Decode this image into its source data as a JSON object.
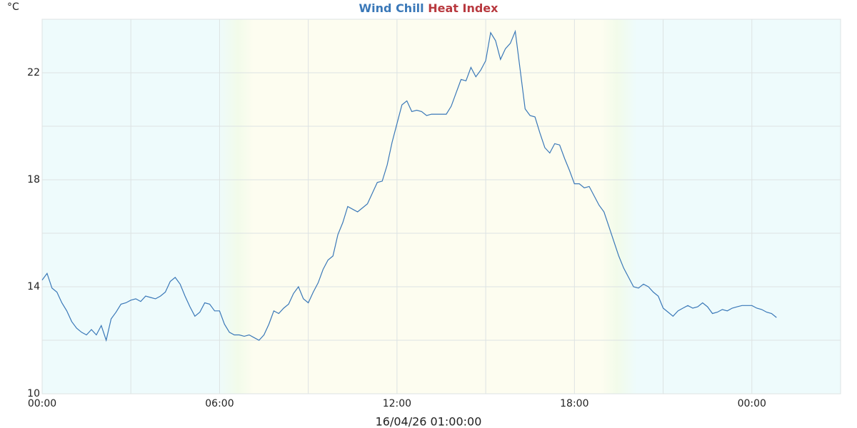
{
  "chart_data": {
    "type": "line",
    "unit_label": "°C",
    "xlabel": "16/04/26 01:00:00",
    "legend_only": [
      {
        "name": "Heat Index",
        "color": "#b8393f"
      }
    ],
    "series": [
      {
        "name": "Wind Chill",
        "color": "#3a78b8",
        "values": [
          14.25,
          14.5,
          13.95,
          13.8,
          13.4,
          13.1,
          12.7,
          12.45,
          12.3,
          12.2,
          12.4,
          12.2,
          12.55,
          12.0,
          12.8,
          13.05,
          13.35,
          13.4,
          13.5,
          13.55,
          13.45,
          13.65,
          13.6,
          13.55,
          13.65,
          13.8,
          14.2,
          14.35,
          14.1,
          13.65,
          13.25,
          12.9,
          13.05,
          13.4,
          13.35,
          13.1,
          13.1,
          12.6,
          12.3,
          12.2,
          12.2,
          12.15,
          12.2,
          12.1,
          12.0,
          12.2,
          12.6,
          13.1,
          13.0,
          13.2,
          13.35,
          13.75,
          14.0,
          13.55,
          13.4,
          13.8,
          14.15,
          14.65,
          15.0,
          15.15,
          15.95,
          16.4,
          17.0,
          16.9,
          16.8,
          16.95,
          17.1,
          17.5,
          17.9,
          17.95,
          18.55,
          19.4,
          20.1,
          20.8,
          20.95,
          20.55,
          20.6,
          20.55,
          20.4,
          20.45,
          20.45,
          20.45,
          20.45,
          20.75,
          21.25,
          21.75,
          21.7,
          22.2,
          21.85,
          22.1,
          22.45,
          23.5,
          23.2,
          22.5,
          22.9,
          23.1,
          23.55,
          22.1,
          20.65,
          20.4,
          20.35,
          19.75,
          19.2,
          19.0,
          19.35,
          19.3,
          18.8,
          18.35,
          17.85,
          17.85,
          17.7,
          17.75,
          17.4,
          17.05,
          16.8,
          16.25,
          15.7,
          15.15,
          14.7,
          14.35,
          14.0,
          13.95,
          14.1,
          14.0,
          13.8,
          13.65,
          13.2,
          13.05,
          12.9,
          13.1,
          13.2,
          13.3,
          13.2,
          13.25,
          13.4,
          13.25,
          13.0,
          13.05,
          13.15,
          13.1,
          13.2,
          13.25,
          13.3,
          13.3,
          13.3,
          13.2,
          13.15,
          13.05,
          13.0,
          12.85
        ]
      }
    ],
    "x": [
      0,
      10,
      20,
      30,
      40,
      50,
      60,
      70,
      80,
      90,
      100,
      110,
      120,
      130,
      140,
      150,
      160,
      170,
      180,
      190,
      200,
      210,
      220,
      230,
      240,
      250,
      260,
      270,
      280,
      290,
      300,
      310,
      320,
      330,
      340,
      350,
      360,
      370,
      380,
      390,
      400,
      410,
      420,
      430,
      440,
      450,
      460,
      470,
      480,
      490,
      500,
      510,
      520,
      530,
      540,
      550,
      560,
      570,
      580,
      590,
      600,
      610,
      620,
      630,
      640,
      650,
      660,
      670,
      680,
      690,
      700,
      710,
      720,
      730,
      740,
      750,
      760,
      770,
      780,
      790,
      800,
      810,
      820,
      830,
      840,
      850,
      860,
      870,
      880,
      890,
      900,
      910,
      920,
      930,
      940,
      950,
      960,
      970,
      980,
      990,
      1000,
      1010,
      1020,
      1030,
      1040,
      1050,
      1060,
      1070,
      1080,
      1090,
      1100,
      1110,
      1120,
      1130,
      1140,
      1150,
      1160,
      1170,
      1180,
      1190,
      1200,
      1210,
      1220,
      1230,
      1240,
      1250,
      1260,
      1270,
      1280,
      1290,
      1300,
      1310,
      1320,
      1330,
      1340,
      1350,
      1360,
      1370,
      1380,
      1390,
      1400,
      1410,
      1420,
      1430,
      1440,
      1450,
      1460,
      1470,
      1480,
      1490
    ],
    "xlim": [
      0,
      1620
    ],
    "xticks": [
      {
        "value": 0,
        "label": "00:00"
      },
      {
        "value": 360,
        "label": "06:00"
      },
      {
        "value": 720,
        "label": "12:00"
      },
      {
        "value": 1080,
        "label": "18:00"
      },
      {
        "value": 1440,
        "label": "00:00"
      }
    ],
    "xgrid": [
      180,
      540,
      900,
      1260,
      1620
    ],
    "ylim": [
      10,
      24
    ],
    "yticks": [
      10,
      14,
      18,
      22
    ],
    "ygrid": [
      12,
      16,
      20,
      24
    ],
    "grid": true
  }
}
